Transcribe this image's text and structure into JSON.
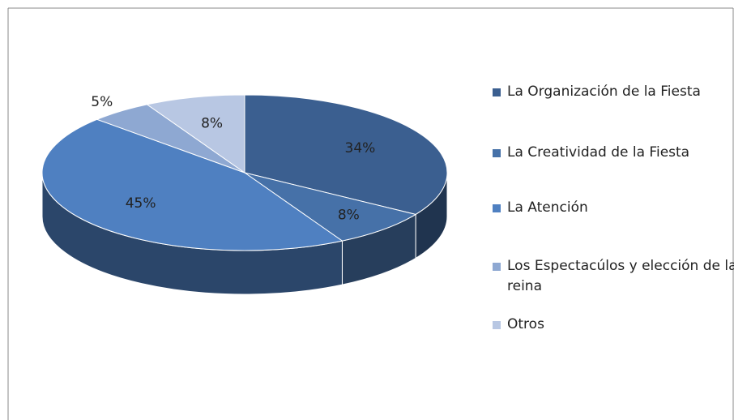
{
  "chart_data": {
    "type": "pie",
    "categories": [
      "La Organización de la Fiesta",
      "La Creatividad de la Fiesta",
      "La Atención",
      "Los Espectacúlos y elección de la reina",
      "Otros"
    ],
    "values": [
      34,
      8,
      45,
      5,
      8
    ],
    "value_labels": [
      "34%",
      "8%",
      "45%",
      "5%",
      "8%"
    ],
    "colors": [
      "#3b5f90",
      "#4671a8",
      "#4f80c1",
      "#8ea8d2",
      "#b8c7e3"
    ],
    "legend": "right"
  }
}
